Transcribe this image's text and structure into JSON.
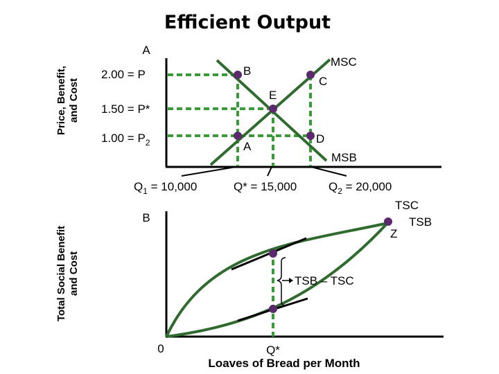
{
  "title": "Efficient Output",
  "top_panel": {
    "y_axis_label_line1": "Price, Benefit,",
    "y_axis_label_line2": "and Cost",
    "axis_top_label": "A",
    "price_labels": [
      "2.00 = P",
      "1.50 = P*",
      "1.00 = P2"
    ],
    "quantity_labels": [
      "Q1 = 10,000",
      "Q* = 15,000",
      "Q2 = 20,000"
    ],
    "curve_labels": {
      "msc": "MSC",
      "msb": "MSB"
    },
    "point_labels": {
      "b": "B",
      "c": "C",
      "e": "E",
      "a": "A",
      "d": "D"
    }
  },
  "bottom_panel": {
    "y_axis_label_line1": "Total Social Benefit",
    "y_axis_label_line2": "and Cost",
    "axis_top_label": "B",
    "curve_labels": {
      "tsc": "TSC",
      "tsb": "TSB",
      "z": "Z"
    },
    "gap_label": "TSB – TSC",
    "origin_label": "0",
    "q_star_label": "Q*",
    "x_axis_label": "Loaves of Bread per Month"
  },
  "colors": {
    "curve": "#2f6b2f",
    "guide": "#3a9a3a",
    "point": "#5a2a6a",
    "axis": "#000000"
  }
}
